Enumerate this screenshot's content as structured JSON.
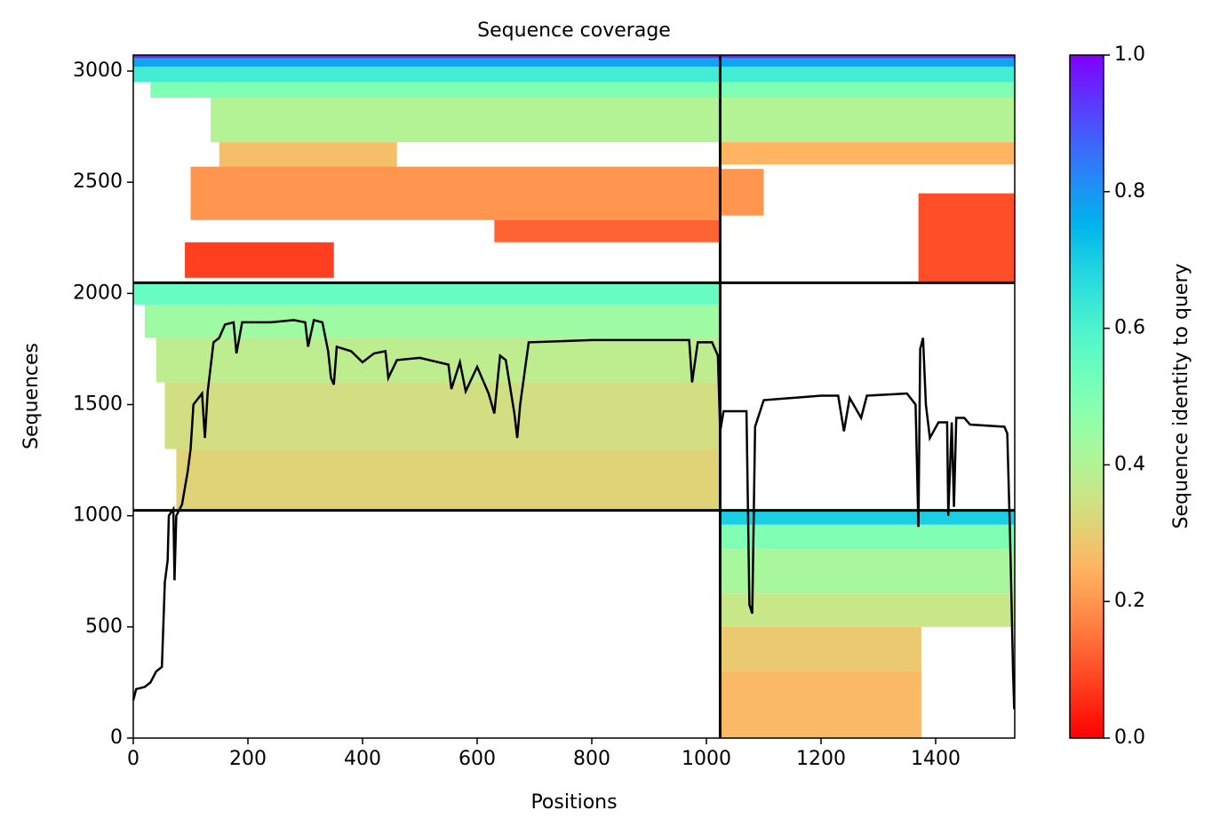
{
  "chart_data": {
    "type": "coverage",
    "title": "Sequence coverage",
    "xlabel": "Positions",
    "ylabel": "Sequences",
    "colorbar_label": "Sequence identity to query",
    "xlim": [
      0,
      1538
    ],
    "ylim": [
      0,
      3072
    ],
    "xticks": [
      0,
      200,
      400,
      600,
      800,
      1000,
      1200,
      1400
    ],
    "yticks": [
      0,
      500,
      1000,
      1500,
      2000,
      2500,
      3000
    ],
    "clim": [
      0,
      1
    ],
    "cticks": [
      {
        "value": 0,
        "label": "0.0"
      },
      {
        "value": 0.2,
        "label": "0.2"
      },
      {
        "value": 0.4,
        "label": "0.4"
      },
      {
        "value": 0.6,
        "label": "0.6"
      },
      {
        "value": 0.8,
        "label": "0.8"
      },
      {
        "value": 1,
        "label": "1.0"
      }
    ],
    "colormap": "rainbow_r",
    "blocks": [
      {
        "x": [
          75,
          1024
        ],
        "y": [
          1024,
          1300
        ],
        "identity": 0.31
      },
      {
        "x": [
          55,
          1024
        ],
        "y": [
          1300,
          1600
        ],
        "identity": 0.34
      },
      {
        "x": [
          40,
          1024
        ],
        "y": [
          1600,
          1800
        ],
        "identity": 0.38
      },
      {
        "x": [
          20,
          1024
        ],
        "y": [
          1800,
          1950
        ],
        "identity": 0.44
      },
      {
        "x": [
          0,
          1024
        ],
        "y": [
          1950,
          2048
        ],
        "identity": 0.55
      },
      {
        "x": [
          1024,
          1375
        ],
        "y": [
          0,
          300
        ],
        "identity": 0.26
      },
      {
        "x": [
          1024,
          1375
        ],
        "y": [
          300,
          500
        ],
        "identity": 0.29
      },
      {
        "x": [
          1024,
          1538
        ],
        "y": [
          500,
          650
        ],
        "identity": 0.36
      },
      {
        "x": [
          1024,
          1538
        ],
        "y": [
          650,
          850
        ],
        "identity": 0.42
      },
      {
        "x": [
          1024,
          1538
        ],
        "y": [
          850,
          960
        ],
        "identity": 0.5
      },
      {
        "x": [
          1024,
          1538
        ],
        "y": [
          960,
          1024
        ],
        "identity": 0.7
      },
      {
        "x": [
          0,
          1538
        ],
        "y": [
          2950,
          3020
        ],
        "identity": 0.62
      },
      {
        "x": [
          0,
          1538
        ],
        "y": [
          3020,
          3060
        ],
        "identity": 0.78
      },
      {
        "x": [
          0,
          1538
        ],
        "y": [
          3060,
          3072
        ],
        "identity": 0.95
      },
      {
        "x": [
          30,
          1538
        ],
        "y": [
          2880,
          2950
        ],
        "identity": 0.5
      },
      {
        "x": [
          135,
          1538
        ],
        "y": [
          2680,
          2880
        ],
        "identity": 0.4
      },
      {
        "x": [
          150,
          460
        ],
        "y": [
          2560,
          2680
        ],
        "identity": 0.27
      },
      {
        "x": [
          1024,
          1538
        ],
        "y": [
          2580,
          2680
        ],
        "identity": 0.25
      },
      {
        "x": [
          100,
          1024
        ],
        "y": [
          2330,
          2570
        ],
        "identity": 0.2
      },
      {
        "x": [
          630,
          1024
        ],
        "y": [
          2230,
          2330
        ],
        "identity": 0.13
      },
      {
        "x": [
          90,
          350
        ],
        "y": [
          2070,
          2230
        ],
        "identity": 0.08
      },
      {
        "x": [
          1370,
          1538
        ],
        "y": [
          2050,
          2450
        ],
        "identity": 0.1
      },
      {
        "x": [
          1024,
          1100
        ],
        "y": [
          2350,
          2560
        ],
        "identity": 0.2
      }
    ],
    "coverage": {
      "x": [
        0,
        5,
        20,
        30,
        40,
        50,
        55,
        60,
        62,
        70,
        72,
        75,
        85,
        95,
        100,
        105,
        120,
        125,
        130,
        140,
        150,
        160,
        175,
        180,
        190,
        240,
        280,
        300,
        305,
        315,
        330,
        340,
        345,
        350,
        355,
        380,
        400,
        420,
        440,
        445,
        460,
        500,
        550,
        555,
        570,
        580,
        600,
        620,
        630,
        640,
        650,
        665,
        670,
        675,
        690,
        800,
        900,
        970,
        975,
        985,
        1010,
        1020,
        1024,
        1030,
        1070,
        1075,
        1080,
        1085,
        1100,
        1200,
        1230,
        1240,
        1250,
        1270,
        1280,
        1350,
        1365,
        1370,
        1373,
        1378,
        1383,
        1390,
        1405,
        1420,
        1422,
        1428,
        1432,
        1436,
        1450,
        1460,
        1520,
        1525,
        1530,
        1535,
        1537
      ],
      "values": [
        170,
        220,
        230,
        250,
        300,
        320,
        700,
        800,
        1000,
        1030,
        710,
        1000,
        1050,
        1200,
        1300,
        1500,
        1550,
        1350,
        1560,
        1780,
        1800,
        1860,
        1870,
        1730,
        1870,
        1870,
        1880,
        1870,
        1760,
        1880,
        1870,
        1740,
        1620,
        1590,
        1760,
        1740,
        1690,
        1730,
        1740,
        1620,
        1700,
        1710,
        1680,
        1570,
        1690,
        1560,
        1670,
        1550,
        1460,
        1720,
        1700,
        1460,
        1350,
        1500,
        1780,
        1790,
        1790,
        1790,
        1600,
        1780,
        1780,
        1720,
        1380,
        1470,
        1470,
        600,
        560,
        1400,
        1520,
        1540,
        1540,
        1380,
        1530,
        1440,
        1540,
        1550,
        1500,
        950,
        1750,
        1800,
        1500,
        1350,
        1420,
        1420,
        1000,
        1420,
        1040,
        1440,
        1440,
        1410,
        1400,
        1370,
        900,
        300,
        130
      ],
      "color": "#000000"
    },
    "boundaries_x": [
      1024
    ],
    "boundaries_y": [
      1024,
      2048
    ]
  }
}
